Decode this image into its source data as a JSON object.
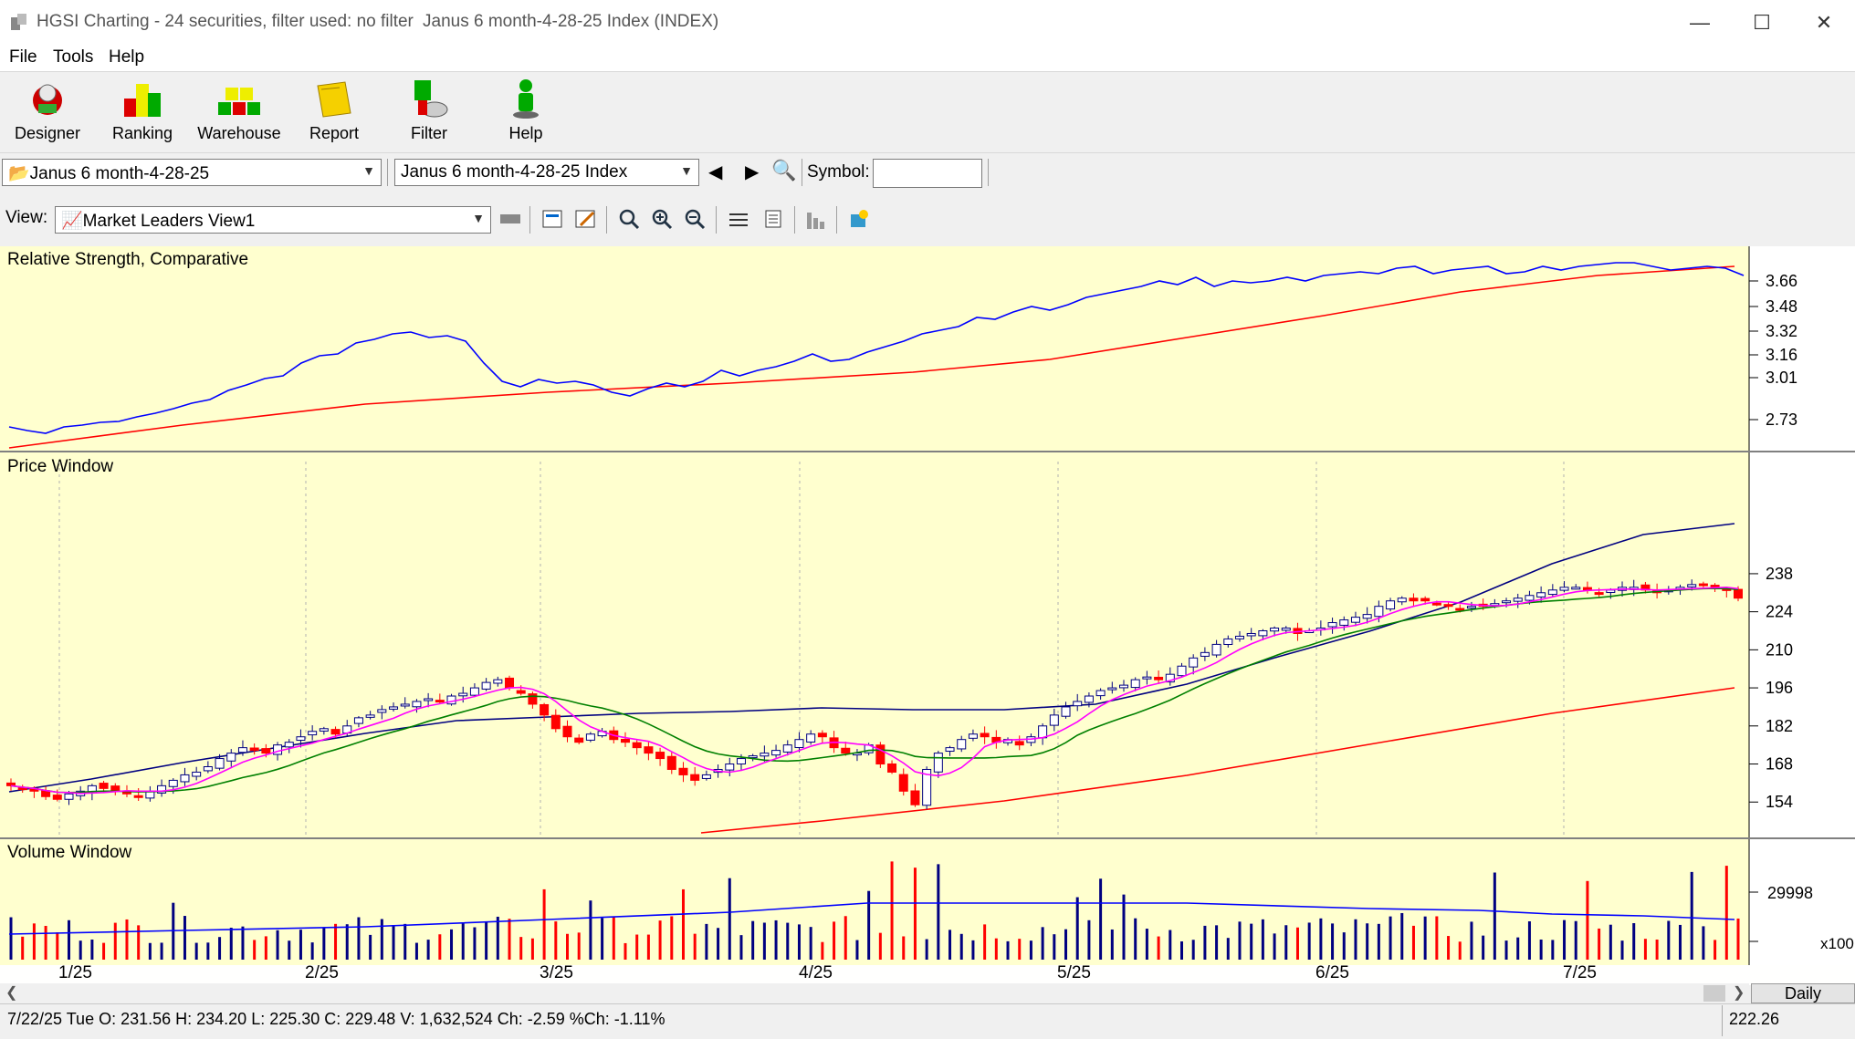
{
  "window": {
    "title": "HGSI Charting - 24 securities, filter used: no filter",
    "subtitle": "Janus 6 month-4-28-25 Index (INDEX)"
  },
  "menu": [
    "File",
    "Tools",
    "Help"
  ],
  "toolbar": [
    {
      "label": "Designer",
      "icon": "designer-icon"
    },
    {
      "label": "Ranking",
      "icon": "ranking-icon"
    },
    {
      "label": "Warehouse",
      "icon": "warehouse-icon"
    },
    {
      "label": "Report",
      "icon": "report-icon"
    },
    {
      "label": "Filter",
      "icon": "filter-icon"
    },
    {
      "label": "Help",
      "icon": "help-person-icon"
    }
  ],
  "selectors": {
    "list": "Janus 6 month-4-28-25",
    "security": "Janus 6 month-4-28-25 Index",
    "symbol_label": "Symbol:",
    "symbol_value": "",
    "view_label": "View:",
    "view": "Market Leaders View1"
  },
  "rs_panel": {
    "title": "Relative Strength, Comparative",
    "ticks": [
      "3.66",
      "3.48",
      "3.32",
      "3.16",
      "3.01",
      "2.73"
    ],
    "tick_values": [
      3.66,
      3.48,
      3.32,
      3.16,
      3.01,
      2.73
    ]
  },
  "price_panel": {
    "title": "Price Window",
    "ticks": [
      "238",
      "224",
      "210",
      "196",
      "182",
      "168",
      "154"
    ],
    "tick_values": [
      238,
      224,
      210,
      196,
      182,
      168,
      154
    ]
  },
  "volume_panel": {
    "title": "Volume Window",
    "ticks": [
      "29998"
    ],
    "multiplier": "x100"
  },
  "date_axis": [
    "1/25",
    "2/25",
    "3/25",
    "4/25",
    "5/25",
    "6/25",
    "7/25"
  ],
  "period": "Daily",
  "status": {
    "text": "7/22/25 Tue O: 231.56 H: 234.20 L: 225.30 C: 229.48 V: 1,632,524 Ch: -2.59 %Ch: -1.11%",
    "right_value": "222.26"
  },
  "chart_data": {
    "type": "line",
    "price": {
      "close_approx": [
        160,
        159,
        158,
        156,
        155,
        157,
        158,
        160,
        159,
        158,
        157,
        156,
        158,
        160,
        162,
        164,
        165,
        167,
        170,
        172,
        174,
        173,
        172,
        175,
        176,
        178,
        180,
        181,
        179,
        182,
        185,
        186,
        188,
        189,
        190,
        191,
        192,
        191,
        193,
        194,
        196,
        198,
        199,
        196,
        194,
        190,
        186,
        181,
        178,
        176,
        179,
        180,
        177,
        176,
        174,
        172,
        170,
        166,
        164,
        162,
        164,
        166,
        168,
        170,
        171,
        172,
        173,
        175,
        177,
        179,
        178,
        174,
        172,
        172,
        175,
        168,
        165,
        158,
        153,
        166,
        172,
        174,
        177,
        179,
        178,
        176,
        177,
        175,
        178,
        182,
        186,
        189,
        191,
        193,
        195,
        196,
        197,
        199,
        200,
        199,
        201,
        204,
        207,
        209,
        212,
        214,
        215,
        216,
        217,
        218,
        218,
        216,
        217,
        218,
        220,
        221,
        222,
        223,
        226,
        228,
        229,
        228,
        228,
        227,
        226,
        225,
        226,
        226,
        227,
        228,
        229,
        230,
        231,
        232,
        233,
        233,
        232,
        231,
        232,
        233,
        233,
        232,
        231,
        232,
        233,
        234,
        234,
        233,
        232,
        229
      ],
      "colors": {
        "up": "#ffffff",
        "down": "#ff0000",
        "ma_fast": "#ff00ff",
        "ma_mid": "#008000",
        "ma_slow": "#000080",
        "ma_long": "#ff0000"
      }
    },
    "relative_strength": {
      "colors": {
        "rs": "#0000ff",
        "avg": "#ff0000"
      }
    },
    "volume": {
      "colors": {
        "up": "#000080",
        "down": "#ff0000",
        "avg": "#0000ff"
      }
    }
  }
}
